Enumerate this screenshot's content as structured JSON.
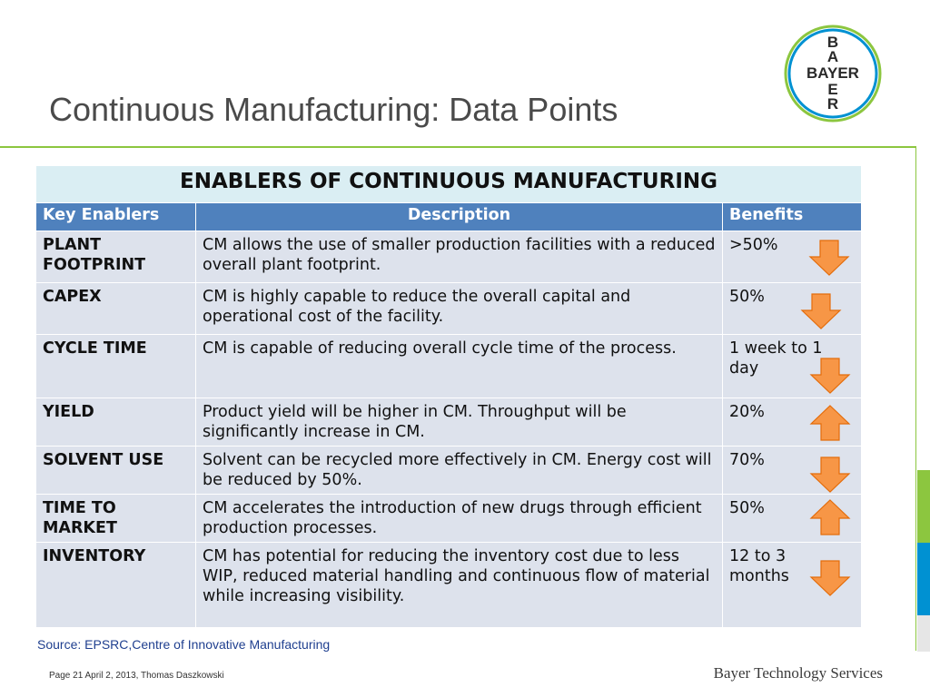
{
  "slide": {
    "title": "Continuous Manufacturing: Data Points",
    "source": "Source: EPSRC,Centre of Innovative Manufacturing",
    "footer_left": "Page 21 April 2, 2013, Thomas Daszkowski",
    "footer_right": "Bayer Technology Services"
  },
  "logo": {
    "letters_vertical": [
      "B",
      "A",
      "Y",
      "E",
      "R"
    ],
    "word": "BAYER",
    "ring_colors": [
      "#8cc63f",
      "#0091d2"
    ]
  },
  "table": {
    "title": "ENABLERS OF CONTINUOUS MANUFACTURING",
    "headers": [
      "Key Enablers",
      "Description",
      "Benefits"
    ],
    "rows": [
      {
        "key": "PLANT FOOTPRINT",
        "description": "CM allows the use of smaller production facilities with a reduced overall plant footprint.",
        "benefit": ">50%",
        "arrow": "down-arrow-icon"
      },
      {
        "key": "CAPEX",
        "description": "CM is highly capable to reduce the overall capital and operational cost of the facility.",
        "benefit": "50%",
        "arrow": "down-arrow-icon"
      },
      {
        "key": "CYCLE TIME",
        "description": "CM is capable of reducing overall cycle time of the process.",
        "benefit": "1 week to 1 day",
        "arrow": "down-arrow-icon"
      },
      {
        "key": "YIELD",
        "description": "Product yield  will be higher in CM. Throughput will be significantly increase in CM.",
        "benefit": "20%",
        "arrow": "up-arrow-icon"
      },
      {
        "key": "SOLVENT USE",
        "description": "Solvent can be recycled more effectively in CM. Energy cost will be reduced by 50%.",
        "benefit": "70%",
        "arrow": "down-arrow-icon"
      },
      {
        "key": "TIME TO MARKET",
        "description": "CM accelerates the introduction of new drugs through efficient production processes.",
        "benefit": "50%",
        "arrow": "up-arrow-icon"
      },
      {
        "key": "INVENTORY",
        "description": "CM has potential for reducing the inventory cost due to less WIP, reduced material handling and continuous flow of material while increasing visibility.",
        "benefit": "12 to 3 months",
        "arrow": "down-arrow-icon"
      }
    ]
  },
  "colors": {
    "header_blue": "#4f81bd",
    "title_band": "#daeef3",
    "row_fill": "#dde2ec",
    "arrow_orange": "#f79646",
    "accent_green": "#8cc63f",
    "accent_blue": "#0091d2"
  }
}
